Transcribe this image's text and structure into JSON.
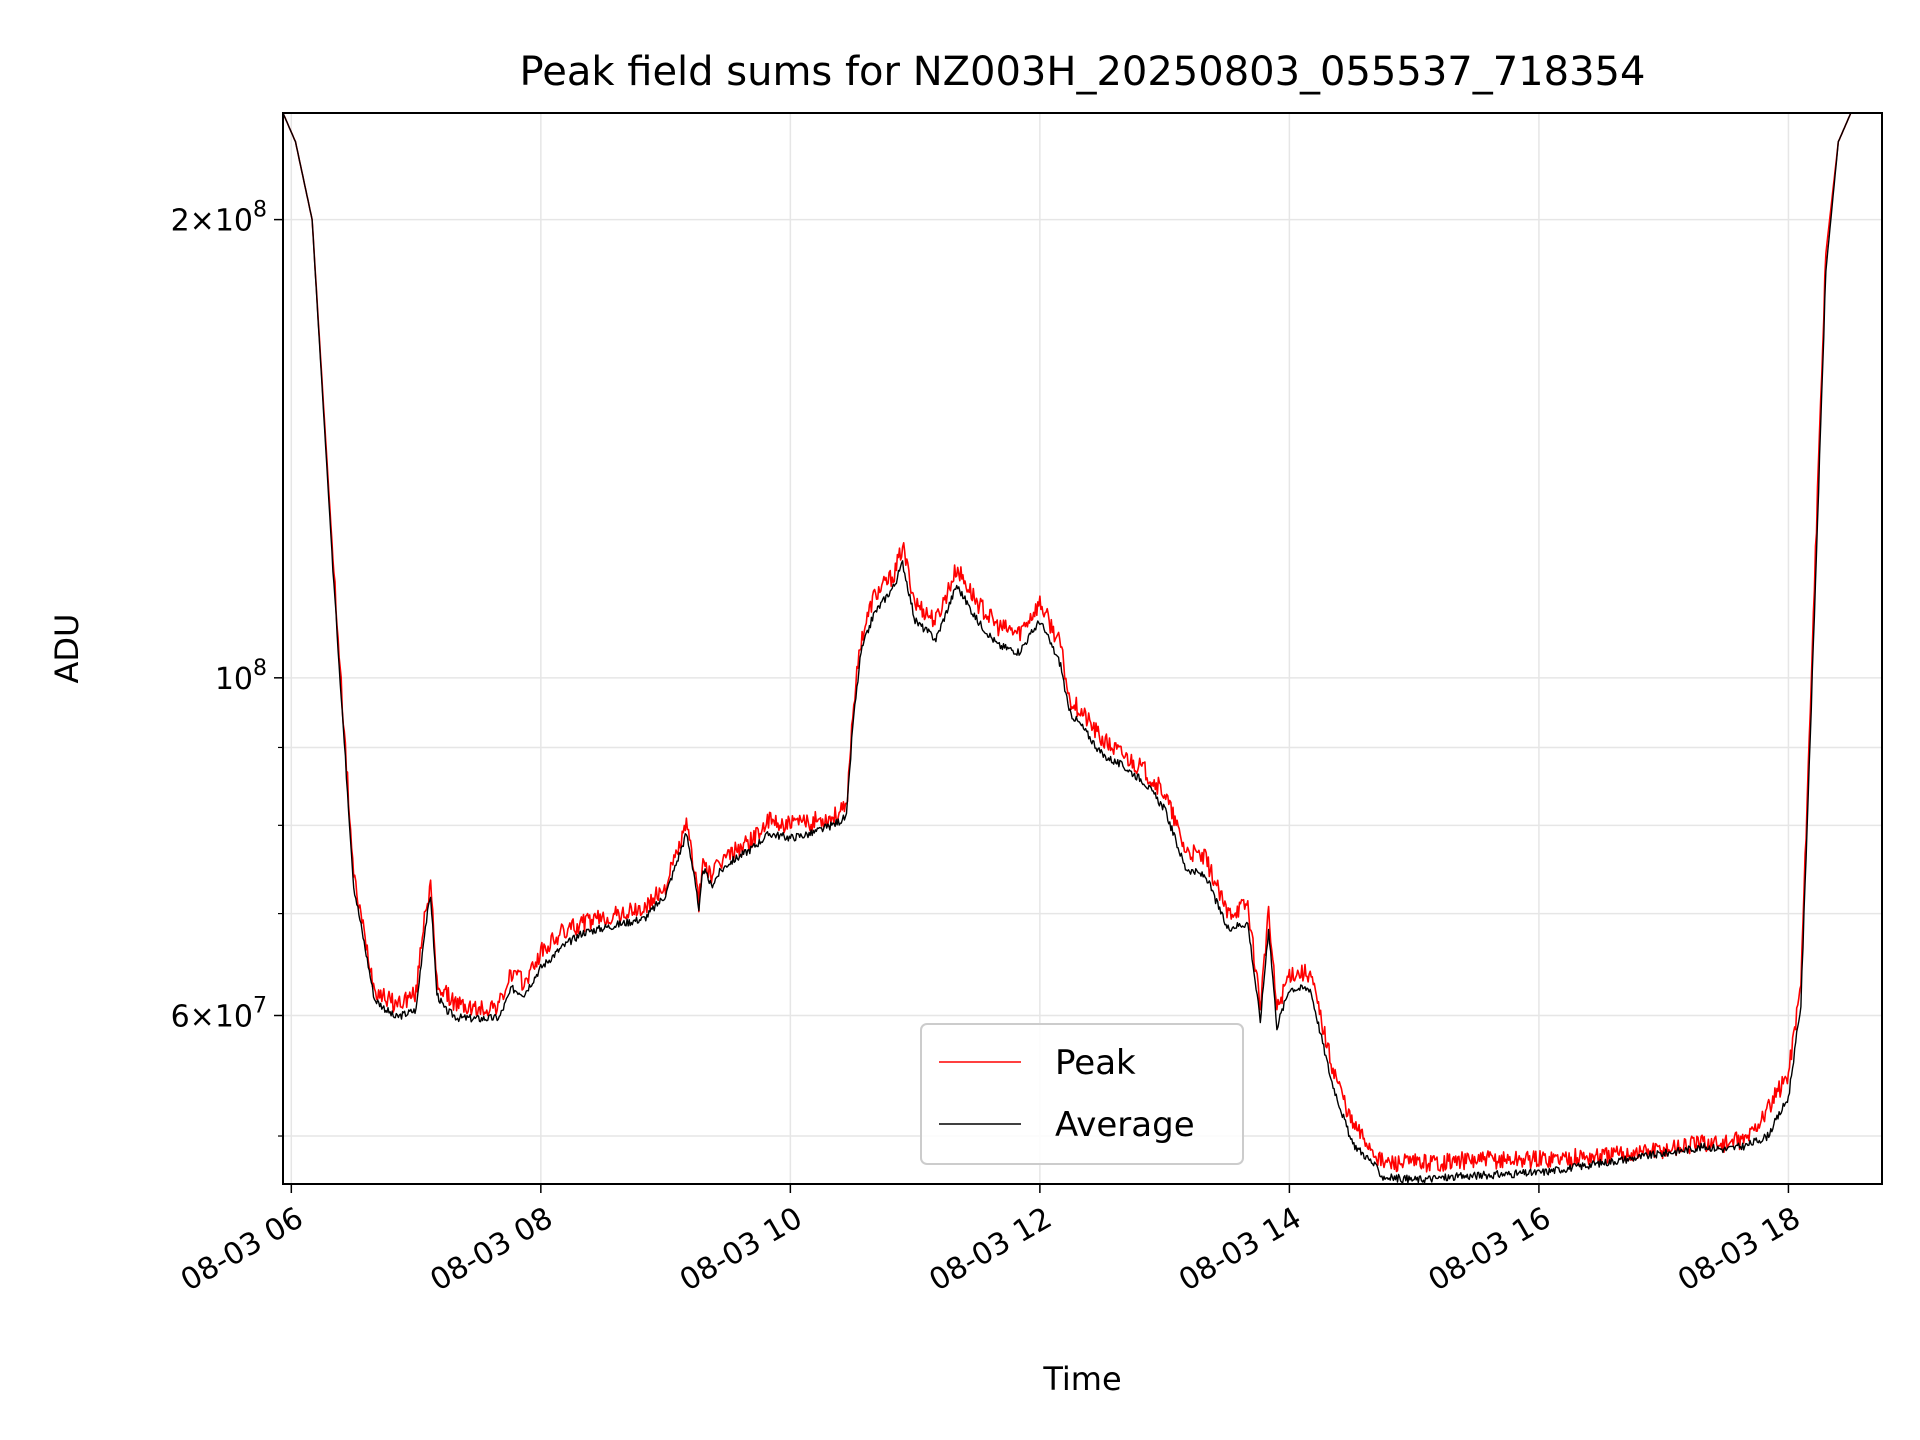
{
  "chart_data": {
    "type": "line",
    "title": "Peak field sums for NZ003H_20250803_055537_718354",
    "xlabel": "Time",
    "ylabel": "ADU",
    "yscale": "log",
    "xlim": [
      "08-03 05:56",
      "08-03 18:45"
    ],
    "ylim": [
      46500000,
      235000000
    ],
    "grid": true,
    "legend": {
      "placement": "lower center",
      "entries": [
        "Peak",
        "Average"
      ]
    },
    "x_ticks": [
      "08-03 06",
      "08-03 08",
      "08-03 10",
      "08-03 12",
      "08-03 14",
      "08-03 16",
      "08-03 18"
    ],
    "y_ticks": [
      {
        "value": 200000000,
        "mantissa": "2",
        "base": "10",
        "exp": "8"
      },
      {
        "value": 100000000,
        "mantissa": "",
        "base": "10",
        "exp": "8"
      },
      {
        "value": 60000000,
        "mantissa": "6",
        "base": "10",
        "exp": "7"
      }
    ],
    "series": [
      {
        "name": "Peak",
        "color": "#ff0000",
        "x": [
          "05:56",
          "06:02",
          "06:10",
          "06:20",
          "06:30",
          "06:40",
          "06:50",
          "07:00",
          "07:04",
          "07:07",
          "07:10",
          "07:14",
          "07:20",
          "07:30",
          "07:40",
          "07:46",
          "07:52",
          "08:00",
          "08:10",
          "08:20",
          "08:30",
          "08:40",
          "08:50",
          "09:00",
          "09:10",
          "09:14",
          "09:16",
          "09:18",
          "09:22",
          "09:26",
          "09:30",
          "09:40",
          "09:50",
          "10:00",
          "10:10",
          "10:20",
          "10:27",
          "10:30",
          "10:34",
          "10:40",
          "10:50",
          "10:54",
          "11:00",
          "11:10",
          "11:20",
          "11:30",
          "11:40",
          "11:50",
          "12:00",
          "12:10",
          "12:14",
          "12:20",
          "12:30",
          "12:40",
          "12:50",
          "13:00",
          "13:10",
          "13:20",
          "13:30",
          "13:40",
          "13:46",
          "13:50",
          "13:54",
          "14:00",
          "14:10",
          "14:20",
          "14:30",
          "14:40",
          "14:45",
          "15:00",
          "15:30",
          "16:00",
          "16:30",
          "17:00",
          "17:20",
          "17:30",
          "17:40",
          "17:50",
          "18:00",
          "18:06",
          "18:12",
          "18:18",
          "18:24",
          "18:30",
          "18:36",
          "18:45"
        ],
        "values": [
          235000000,
          225000000,
          200000000,
          120000000,
          74000000,
          62500000,
          61000000,
          62000000,
          70000000,
          73000000,
          63000000,
          62000000,
          61000000,
          60500000,
          61000000,
          64000000,
          63000000,
          66000000,
          68000000,
          69000000,
          69500000,
          70000000,
          70500000,
          73000000,
          80000000,
          75000000,
          71000000,
          76000000,
          74000000,
          75500000,
          76500000,
          78000000,
          80500000,
          80000000,
          80500000,
          81000000,
          82000000,
          95000000,
          106000000,
          113000000,
          117000000,
          122000000,
          112000000,
          109000000,
          118000000,
          112000000,
          108000000,
          107000000,
          112000000,
          105000000,
          97000000,
          95000000,
          91000000,
          89000000,
          87000000,
          84000000,
          77000000,
          76000000,
          70000000,
          71000000,
          61000000,
          70000000,
          60500000,
          64000000,
          64000000,
          56000000,
          51000000,
          49000000,
          48000000,
          48000000,
          48200000,
          48300000,
          48500000,
          49000000,
          49500000,
          49400000,
          49800000,
          52000000,
          55000000,
          63000000,
          110000000,
          190000000,
          225000000,
          235000000,
          235000000,
          235000000
        ]
      },
      {
        "name": "Average",
        "color": "#000000",
        "x": [
          "05:56",
          "06:02",
          "06:10",
          "06:20",
          "06:30",
          "06:40",
          "06:50",
          "07:00",
          "07:04",
          "07:07",
          "07:10",
          "07:14",
          "07:20",
          "07:30",
          "07:40",
          "07:46",
          "07:52",
          "08:00",
          "08:10",
          "08:20",
          "08:30",
          "08:40",
          "08:50",
          "09:00",
          "09:10",
          "09:14",
          "09:16",
          "09:18",
          "09:22",
          "09:26",
          "09:30",
          "09:40",
          "09:50",
          "10:00",
          "10:10",
          "10:20",
          "10:27",
          "10:30",
          "10:34",
          "10:40",
          "10:50",
          "10:54",
          "11:00",
          "11:10",
          "11:20",
          "11:30",
          "11:40",
          "11:50",
          "12:00",
          "12:10",
          "12:14",
          "12:20",
          "12:30",
          "12:40",
          "12:50",
          "13:00",
          "13:10",
          "13:20",
          "13:30",
          "13:40",
          "13:46",
          "13:50",
          "13:54",
          "14:00",
          "14:10",
          "14:20",
          "14:30",
          "14:40",
          "14:45",
          "15:00",
          "15:30",
          "16:00",
          "16:30",
          "17:00",
          "17:20",
          "17:30",
          "17:40",
          "17:50",
          "18:00",
          "18:06",
          "18:12",
          "18:18",
          "18:24",
          "18:30",
          "18:36",
          "18:45"
        ],
        "values": [
          235000000,
          225000000,
          200000000,
          118000000,
          73000000,
          61500000,
          59800000,
          60500000,
          68000000,
          72000000,
          62000000,
          60500000,
          59800000,
          59700000,
          59800000,
          62500000,
          62000000,
          64500000,
          66500000,
          68000000,
          68500000,
          69000000,
          69500000,
          72000000,
          79000000,
          74000000,
          70000000,
          75000000,
          73000000,
          74500000,
          75500000,
          77000000,
          79000000,
          78500000,
          79000000,
          80000000,
          81000000,
          93000000,
          104000000,
          110000000,
          115000000,
          119000000,
          109000000,
          106000000,
          115000000,
          109000000,
          105000000,
          104000000,
          109000000,
          102000000,
          95000000,
          93000000,
          89000000,
          87500000,
          85500000,
          82000000,
          75000000,
          74000000,
          68500000,
          69000000,
          59500000,
          68500000,
          59000000,
          62500000,
          62500000,
          54500000,
          49500000,
          48000000,
          47000000,
          46800000,
          47100000,
          47300000,
          48000000,
          48700000,
          49200000,
          49000000,
          49300000,
          50000000,
          53000000,
          61000000,
          105000000,
          185000000,
          225000000,
          235000000,
          235000000,
          235000000
        ]
      }
    ]
  }
}
